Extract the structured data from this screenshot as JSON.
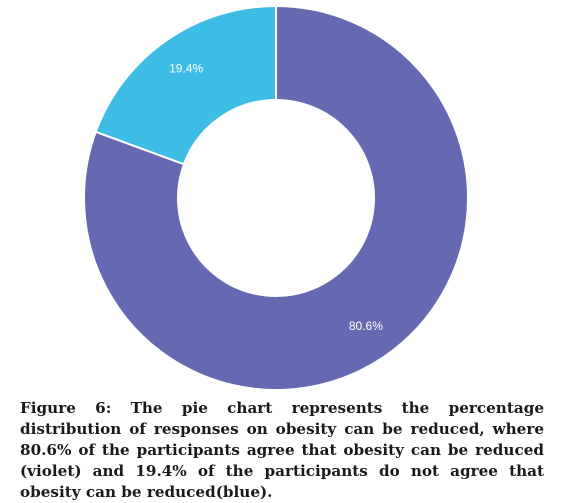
{
  "chart_data": {
    "type": "pie",
    "variant": "donut",
    "slices": [
      {
        "label": "80.6%",
        "value": 80.6,
        "color": "#6569b2"
      },
      {
        "label": "19.4%",
        "value": 19.4,
        "color": "#3dbce5"
      }
    ]
  },
  "caption": "Figure 6: The pie chart represents the percentage distribution of responses on obesity can be reduced, where 80.6% of the participants agree that obesity can be reduced (violet) and 19.4% of the participants do not agree that obesity can be reduced(blue)."
}
